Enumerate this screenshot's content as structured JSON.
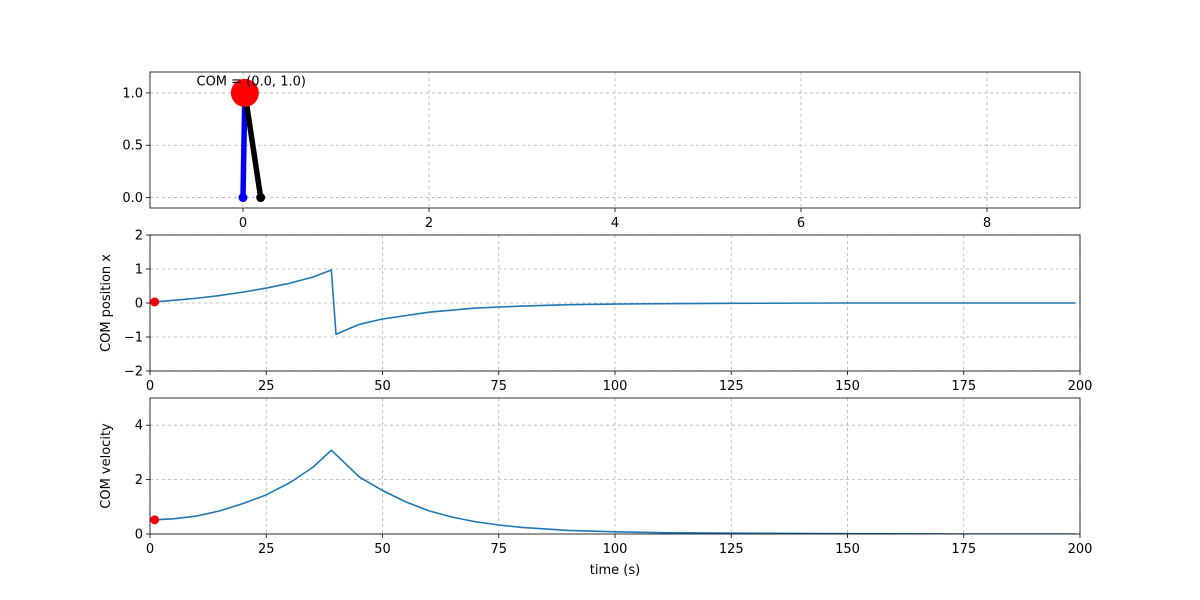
{
  "chart_data": [
    {
      "type": "scatter",
      "title": "",
      "xlabel": "",
      "ylabel": "",
      "xlim": [
        -1.0,
        9.0
      ],
      "ylim": [
        -0.1,
        1.2
      ],
      "xticks": [
        0,
        2,
        4,
        6,
        8
      ],
      "yticks": [
        0.0,
        0.5,
        1.0
      ],
      "xtick_labels": [
        "0",
        "2",
        "4",
        "6",
        "8"
      ],
      "ytick_labels": [
        "0.0",
        "0.5",
        "1.0"
      ],
      "grid": true,
      "annotation": "COM = (0.0, 1.0)",
      "com": {
        "x": 0.02,
        "y": 1.0,
        "color": "#ff0000"
      },
      "legs": [
        {
          "from": [
            0.0,
            0.0
          ],
          "to": [
            0.02,
            1.0
          ],
          "color": "#0000ff"
        },
        {
          "from": [
            0.19,
            0.0
          ],
          "to": [
            0.02,
            1.0
          ],
          "color": "#000000"
        }
      ]
    },
    {
      "type": "line",
      "title": "",
      "xlabel": "",
      "ylabel": "COM position x",
      "xlim": [
        0,
        200
      ],
      "ylim": [
        -2,
        2
      ],
      "xticks": [
        0,
        25,
        50,
        75,
        100,
        125,
        150,
        175,
        200
      ],
      "yticks": [
        -2,
        -1,
        0,
        1,
        2
      ],
      "xtick_labels": [
        "0",
        "25",
        "50",
        "75",
        "100",
        "125",
        "150",
        "175",
        "200"
      ],
      "ytick_labels": [
        "−2",
        "−1",
        "0",
        "1",
        "2"
      ],
      "grid": true,
      "marker": {
        "x": 1,
        "y": 0.03,
        "color": "#ff0000"
      },
      "series_color": "#1f77b4",
      "x": [
        1,
        5,
        10,
        15,
        20,
        25,
        30,
        35,
        39,
        40,
        45,
        50,
        60,
        70,
        80,
        90,
        100,
        110,
        125,
        150,
        175,
        199
      ],
      "y": [
        0.03,
        0.08,
        0.14,
        0.22,
        0.32,
        0.44,
        0.58,
        0.76,
        0.97,
        -0.92,
        -0.63,
        -0.47,
        -0.27,
        -0.15,
        -0.09,
        -0.05,
        -0.03,
        -0.02,
        -0.01,
        0.0,
        0.0,
        0.0
      ]
    },
    {
      "type": "line",
      "title": "",
      "xlabel": "time (s)",
      "ylabel": "COM velocity",
      "xlim": [
        0,
        200
      ],
      "ylim": [
        0,
        5
      ],
      "xticks": [
        0,
        25,
        50,
        75,
        100,
        125,
        150,
        175,
        200
      ],
      "yticks": [
        0,
        2,
        4
      ],
      "xtick_labels": [
        "0",
        "25",
        "50",
        "75",
        "100",
        "125",
        "150",
        "175",
        "200"
      ],
      "ytick_labels": [
        "0",
        "2",
        "4"
      ],
      "grid": true,
      "marker": {
        "x": 1,
        "y": 0.52,
        "color": "#ff0000"
      },
      "series_color": "#1f77b4",
      "x": [
        1,
        5,
        10,
        15,
        20,
        25,
        30,
        35,
        39,
        45,
        50,
        55,
        60,
        65,
        70,
        75,
        80,
        90,
        100,
        110,
        125,
        150,
        175,
        199
      ],
      "y": [
        0.52,
        0.56,
        0.66,
        0.85,
        1.12,
        1.44,
        1.88,
        2.45,
        3.08,
        2.1,
        1.6,
        1.18,
        0.85,
        0.62,
        0.45,
        0.33,
        0.24,
        0.13,
        0.08,
        0.05,
        0.03,
        0.01,
        0.0,
        0.0
      ]
    }
  ]
}
